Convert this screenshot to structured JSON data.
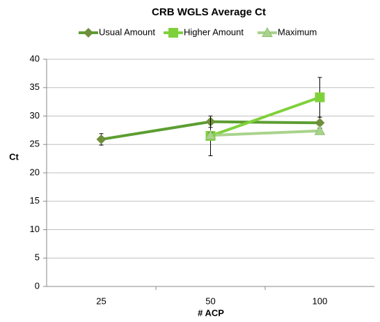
{
  "chart_data": {
    "type": "line",
    "title": "CRB WGLS Average Ct",
    "x_label": "# ACP",
    "y_label": "Ct",
    "categories": [
      "25",
      "50",
      "100"
    ],
    "series": [
      {
        "name": "Usual Amount",
        "color": "#5c9e31",
        "marker": "diamond",
        "values": [
          25.9,
          29.0,
          28.8
        ],
        "errors": [
          1.0,
          1.0,
          1.0
        ]
      },
      {
        "name": "Higher Amount",
        "color": "#7fd13b",
        "marker": "square",
        "values": [
          null,
          26.5,
          33.3
        ],
        "errors": [
          null,
          3.5,
          3.5
        ]
      },
      {
        "name": "Maximum",
        "color": "#a9d38c",
        "marker": "triangle",
        "values": [
          null,
          26.6,
          27.4
        ],
        "errors": [
          null,
          0.5,
          0.5
        ]
      }
    ],
    "ylim": [
      0,
      40
    ],
    "yticks": [
      0,
      5,
      10,
      15,
      20,
      25,
      30,
      35,
      40
    ],
    "grid": true,
    "legend": "top"
  }
}
